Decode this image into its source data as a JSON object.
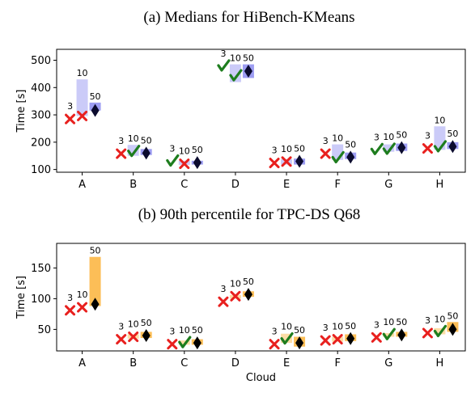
{
  "chart_data": [
    {
      "type": "box",
      "title": "(a) Medians for HiBench-KMeans",
      "ylabel": "Time [s]",
      "xlabel": "",
      "ylim": [
        90,
        540
      ],
      "yticks": [
        100,
        200,
        300,
        400,
        500
      ],
      "categories": [
        "A",
        "B",
        "C",
        "D",
        "E",
        "F",
        "G",
        "H"
      ],
      "colors": {
        "bar": "#8c8cf0",
        "marker_bad": "#e8201e",
        "marker_good": "#1e7d1e",
        "marker_final": "#0b0b2e"
      },
      "groups": [
        {
          "category": "A",
          "points": [
            {
              "label": "3",
              "value": 285,
              "low": 285,
              "high": 285,
              "mark": "x"
            },
            {
              "label": "10",
              "value": 296,
              "low": 296,
              "high": 430,
              "mark": "x"
            },
            {
              "label": "50",
              "value": 316,
              "low": 316,
              "high": 345,
              "mark": "diamond"
            }
          ]
        },
        {
          "category": "B",
          "points": [
            {
              "label": "3",
              "value": 158,
              "low": 158,
              "high": 158,
              "mark": "x"
            },
            {
              "label": "10",
              "value": 165,
              "low": 150,
              "high": 190,
              "mark": "check"
            },
            {
              "label": "50",
              "value": 160,
              "low": 153,
              "high": 175,
              "mark": "diamond"
            }
          ]
        },
        {
          "category": "C",
          "points": [
            {
              "label": "3",
              "value": 130,
              "low": 130,
              "high": 130,
              "mark": "check"
            },
            {
              "label": "10",
              "value": 121,
              "low": 117,
              "high": 132,
              "mark": "x"
            },
            {
              "label": "50",
              "value": 125,
              "low": 118,
              "high": 132,
              "mark": "diamond"
            }
          ]
        },
        {
          "category": "D",
          "points": [
            {
              "label": "3",
              "value": 478,
              "low": 478,
              "high": 478,
              "mark": "check"
            },
            {
              "label": "10",
              "value": 442,
              "low": 420,
              "high": 485,
              "mark": "check"
            },
            {
              "label": "50",
              "value": 460,
              "low": 435,
              "high": 485,
              "mark": "diamond"
            }
          ]
        },
        {
          "category": "E",
          "points": [
            {
              "label": "3",
              "value": 124,
              "low": 124,
              "high": 124,
              "mark": "x"
            },
            {
              "label": "10",
              "value": 129,
              "low": 118,
              "high": 138,
              "mark": "x"
            },
            {
              "label": "50",
              "value": 130,
              "low": 118,
              "high": 140,
              "mark": "diamond"
            }
          ]
        },
        {
          "category": "F",
          "points": [
            {
              "label": "3",
              "value": 158,
              "low": 158,
              "high": 158,
              "mark": "x"
            },
            {
              "label": "10",
              "value": 142,
              "low": 135,
              "high": 192,
              "mark": "check"
            },
            {
              "label": "50",
              "value": 145,
              "low": 138,
              "high": 162,
              "mark": "diamond"
            }
          ]
        },
        {
          "category": "G",
          "points": [
            {
              "label": "3",
              "value": 172,
              "low": 172,
              "high": 172,
              "mark": "check"
            },
            {
              "label": "10",
              "value": 173,
              "low": 165,
              "high": 192,
              "mark": "check"
            },
            {
              "label": "50",
              "value": 180,
              "low": 168,
              "high": 195,
              "mark": "diamond"
            }
          ]
        },
        {
          "category": "H",
          "points": [
            {
              "label": "3",
              "value": 177,
              "low": 177,
              "high": 177,
              "mark": "x"
            },
            {
              "label": "10",
              "value": 182,
              "low": 172,
              "high": 258,
              "mark": "check"
            },
            {
              "label": "50",
              "value": 184,
              "low": 175,
              "high": 200,
              "mark": "diamond"
            }
          ]
        }
      ]
    },
    {
      "type": "box",
      "title": "(b) 90th percentile for TPC-DS Q68",
      "ylabel": "Time [s]",
      "xlabel": "Cloud",
      "ylim": [
        15,
        190
      ],
      "yticks": [
        50,
        100,
        150
      ],
      "categories": [
        "A",
        "B",
        "C",
        "D",
        "E",
        "F",
        "G",
        "H"
      ],
      "colors": {
        "bar": "#fbb33a",
        "marker_bad": "#e8201e",
        "marker_good": "#1e7d1e",
        "marker_final": "#000000"
      },
      "groups": [
        {
          "category": "A",
          "points": [
            {
              "label": "3",
              "value": 81,
              "low": 81,
              "high": 81,
              "mark": "x"
            },
            {
              "label": "10",
              "value": 86,
              "low": 86,
              "high": 86,
              "mark": "x"
            },
            {
              "label": "50",
              "value": 91,
              "low": 88,
              "high": 168,
              "mark": "diamond"
            }
          ]
        },
        {
          "category": "B",
          "points": [
            {
              "label": "3",
              "value": 34,
              "low": 34,
              "high": 34,
              "mark": "x"
            },
            {
              "label": "10",
              "value": 38,
              "low": 35,
              "high": 42,
              "mark": "x"
            },
            {
              "label": "50",
              "value": 40,
              "low": 36,
              "high": 46,
              "mark": "diamond"
            }
          ]
        },
        {
          "category": "C",
          "points": [
            {
              "label": "3",
              "value": 26,
              "low": 26,
              "high": 26,
              "mark": "x"
            },
            {
              "label": "10",
              "value": 28,
              "low": 25,
              "high": 32,
              "mark": "check"
            },
            {
              "label": "50",
              "value": 28,
              "low": 25,
              "high": 34,
              "mark": "diamond"
            }
          ]
        },
        {
          "category": "D",
          "points": [
            {
              "label": "3",
              "value": 95,
              "low": 95,
              "high": 95,
              "mark": "x"
            },
            {
              "label": "10",
              "value": 104,
              "low": 100,
              "high": 106,
              "mark": "x"
            },
            {
              "label": "50",
              "value": 107,
              "low": 103,
              "high": 112,
              "mark": "diamond"
            }
          ]
        },
        {
          "category": "E",
          "points": [
            {
              "label": "3",
              "value": 26,
              "low": 26,
              "high": 26,
              "mark": "x"
            },
            {
              "label": "10",
              "value": 34,
              "low": 28,
              "high": 43,
              "mark": "check"
            },
            {
              "label": "50",
              "value": 28,
              "low": 22,
              "high": 38,
              "mark": "diamond"
            }
          ]
        },
        {
          "category": "F",
          "points": [
            {
              "label": "3",
              "value": 32,
              "low": 32,
              "high": 32,
              "mark": "x"
            },
            {
              "label": "10",
              "value": 34,
              "low": 30,
              "high": 38,
              "mark": "x"
            },
            {
              "label": "50",
              "value": 35,
              "low": 31,
              "high": 42,
              "mark": "diamond"
            }
          ]
        },
        {
          "category": "G",
          "points": [
            {
              "label": "3",
              "value": 37,
              "low": 37,
              "high": 37,
              "mark": "x"
            },
            {
              "label": "10",
              "value": 41,
              "low": 38,
              "high": 44,
              "mark": "check"
            },
            {
              "label": "50",
              "value": 41,
              "low": 38,
              "high": 46,
              "mark": "diamond"
            }
          ]
        },
        {
          "category": "H",
          "points": [
            {
              "label": "3",
              "value": 44,
              "low": 44,
              "high": 44,
              "mark": "x"
            },
            {
              "label": "10",
              "value": 46,
              "low": 42,
              "high": 52,
              "mark": "check"
            },
            {
              "label": "50",
              "value": 50,
              "low": 46,
              "high": 62,
              "mark": "diamond"
            }
          ]
        }
      ]
    }
  ]
}
